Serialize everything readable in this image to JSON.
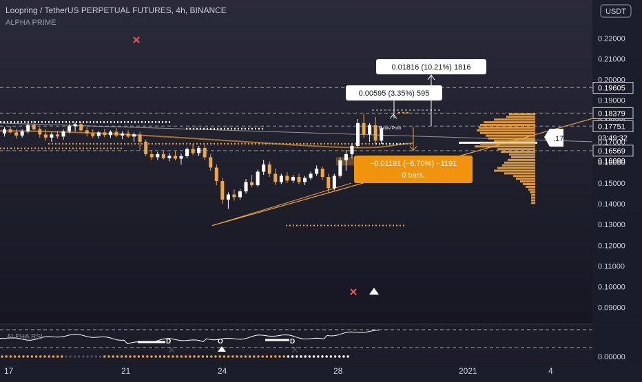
{
  "header": {
    "symbol_line": "Loopring / TetherUS PERPETUAL FUTURES, 4h, BINANCE",
    "indicator": "ALPHA PRIME",
    "currency_button": "USDT"
  },
  "colors": {
    "background_top": "#2a2b38",
    "background_bottom": "#12131f",
    "bull": "#ffffff",
    "bear": "#f0a640",
    "orange": "#f0a640",
    "grid_dash": "#c8c8c8",
    "axis_text": "#d1d4dc",
    "red_marker": "#f05454"
  },
  "chart_data": [
    {
      "type": "candlestick",
      "title": "Loopring / TetherUS PERPETUAL FUTURES, 4h, BINANCE",
      "x_ticks": [
        "17",
        "21",
        "24",
        "28",
        "2021",
        "4"
      ],
      "y_ticks": [
        0.22,
        0.21,
        0.2,
        0.19,
        0.18,
        0.17,
        0.16,
        0.15,
        0.14,
        0.13,
        0.12,
        0.11,
        0.1,
        0.09
      ],
      "y_tick_labels": [
        "0.22000",
        "0.21000",
        "0.20000",
        "0.19000",
        "0.18000",
        "0.17000",
        "0.16000",
        "0.15000",
        "0.14000",
        "0.13000",
        "0.12000",
        "0.11000",
        "0.10000",
        "0.09000"
      ],
      "ylim": [
        0.0855,
        0.2245
      ],
      "price_labels": [
        {
          "value": 0.19605,
          "text": "0.19605",
          "style": "outline"
        },
        {
          "value": 0.18379,
          "text": "0.18379",
          "style": "outline"
        },
        {
          "value": 0.17751,
          "text": "0.17751",
          "style": "outline"
        },
        {
          "value": 0.1719,
          "text": "03:49:32",
          "style": "plain"
        },
        {
          "value": 0.16569,
          "text": "0.16569",
          "style": "outline"
        },
        {
          "value": 0.1609,
          "text": "0.16090",
          "style": "plain"
        }
      ],
      "measure_boxes": [
        {
          "text": "0.01816 (10.21%) 1816",
          "style": "white"
        },
        {
          "text": "0.00595 (3.35%) 595",
          "style": "white"
        },
        {
          "line1": "−0.01191 (−6.70%) −1191",
          "line2": "0 bars,",
          "style": "orange"
        }
      ],
      "annotations": [
        "Future Pivot"
      ],
      "current_price_tag": ".17",
      "candles": [
        {
          "o": 0.174,
          "h": 0.177,
          "l": 0.1725,
          "c": 0.176
        },
        {
          "o": 0.176,
          "h": 0.1775,
          "l": 0.174,
          "c": 0.1745
        },
        {
          "o": 0.1745,
          "h": 0.1762,
          "l": 0.1715,
          "c": 0.173
        },
        {
          "o": 0.173,
          "h": 0.176,
          "l": 0.172,
          "c": 0.175
        },
        {
          "o": 0.175,
          "h": 0.179,
          "l": 0.174,
          "c": 0.178
        },
        {
          "o": 0.178,
          "h": 0.18,
          "l": 0.175,
          "c": 0.176
        },
        {
          "o": 0.176,
          "h": 0.177,
          "l": 0.172,
          "c": 0.1735
        },
        {
          "o": 0.1735,
          "h": 0.176,
          "l": 0.1705,
          "c": 0.172
        },
        {
          "o": 0.172,
          "h": 0.1745,
          "l": 0.17,
          "c": 0.1735
        },
        {
          "o": 0.1735,
          "h": 0.175,
          "l": 0.1715,
          "c": 0.1725
        },
        {
          "o": 0.1725,
          "h": 0.176,
          "l": 0.171,
          "c": 0.175
        },
        {
          "o": 0.175,
          "h": 0.1785,
          "l": 0.174,
          "c": 0.1775
        },
        {
          "o": 0.1775,
          "h": 0.1792,
          "l": 0.175,
          "c": 0.1785
        },
        {
          "o": 0.1785,
          "h": 0.1795,
          "l": 0.1745,
          "c": 0.1755
        },
        {
          "o": 0.1755,
          "h": 0.177,
          "l": 0.1725,
          "c": 0.174
        },
        {
          "o": 0.174,
          "h": 0.176,
          "l": 0.1718,
          "c": 0.1728
        },
        {
          "o": 0.1728,
          "h": 0.1752,
          "l": 0.1715,
          "c": 0.1745
        },
        {
          "o": 0.1745,
          "h": 0.1762,
          "l": 0.1722,
          "c": 0.1732
        },
        {
          "o": 0.1732,
          "h": 0.1755,
          "l": 0.1718,
          "c": 0.1748
        },
        {
          "o": 0.1748,
          "h": 0.1765,
          "l": 0.1722,
          "c": 0.173
        },
        {
          "o": 0.173,
          "h": 0.175,
          "l": 0.1712,
          "c": 0.174
        },
        {
          "o": 0.174,
          "h": 0.1755,
          "l": 0.1718,
          "c": 0.1725
        },
        {
          "o": 0.1725,
          "h": 0.1745,
          "l": 0.17,
          "c": 0.1735
        },
        {
          "o": 0.1735,
          "h": 0.1748,
          "l": 0.166,
          "c": 0.17
        },
        {
          "o": 0.17,
          "h": 0.171,
          "l": 0.163,
          "c": 0.164
        },
        {
          "o": 0.164,
          "h": 0.166,
          "l": 0.161,
          "c": 0.1625
        },
        {
          "o": 0.1625,
          "h": 0.165,
          "l": 0.1612,
          "c": 0.164
        },
        {
          "o": 0.164,
          "h": 0.1658,
          "l": 0.1615,
          "c": 0.162
        },
        {
          "o": 0.162,
          "h": 0.1645,
          "l": 0.1605,
          "c": 0.1632
        },
        {
          "o": 0.1632,
          "h": 0.1655,
          "l": 0.161,
          "c": 0.1618
        },
        {
          "o": 0.1618,
          "h": 0.1642,
          "l": 0.159,
          "c": 0.163
        },
        {
          "o": 0.163,
          "h": 0.1672,
          "l": 0.162,
          "c": 0.1665
        },
        {
          "o": 0.1665,
          "h": 0.169,
          "l": 0.1635,
          "c": 0.1645
        },
        {
          "o": 0.1645,
          "h": 0.168,
          "l": 0.163,
          "c": 0.167
        },
        {
          "o": 0.167,
          "h": 0.1685,
          "l": 0.161,
          "c": 0.1625
        },
        {
          "o": 0.1625,
          "h": 0.164,
          "l": 0.156,
          "c": 0.1575
        },
        {
          "o": 0.1575,
          "h": 0.159,
          "l": 0.149,
          "c": 0.151
        },
        {
          "o": 0.151,
          "h": 0.1525,
          "l": 0.14,
          "c": 0.142
        },
        {
          "o": 0.142,
          "h": 0.1455,
          "l": 0.1375,
          "c": 0.1445
        },
        {
          "o": 0.1445,
          "h": 0.147,
          "l": 0.1415,
          "c": 0.1432
        },
        {
          "o": 0.1432,
          "h": 0.147,
          "l": 0.142,
          "c": 0.146
        },
        {
          "o": 0.146,
          "h": 0.152,
          "l": 0.145,
          "c": 0.1505
        },
        {
          "o": 0.1505,
          "h": 0.154,
          "l": 0.148,
          "c": 0.149
        },
        {
          "o": 0.149,
          "h": 0.1565,
          "l": 0.1482,
          "c": 0.1555
        },
        {
          "o": 0.1555,
          "h": 0.1612,
          "l": 0.154,
          "c": 0.159
        },
        {
          "o": 0.159,
          "h": 0.1605,
          "l": 0.153,
          "c": 0.1545
        },
        {
          "o": 0.1545,
          "h": 0.157,
          "l": 0.149,
          "c": 0.1505
        },
        {
          "o": 0.1505,
          "h": 0.1545,
          "l": 0.1495,
          "c": 0.1535
        },
        {
          "o": 0.1535,
          "h": 0.1552,
          "l": 0.15,
          "c": 0.1512
        },
        {
          "o": 0.1512,
          "h": 0.154,
          "l": 0.15,
          "c": 0.153
        },
        {
          "o": 0.153,
          "h": 0.1545,
          "l": 0.1495,
          "c": 0.1505
        },
        {
          "o": 0.1505,
          "h": 0.1535,
          "l": 0.149,
          "c": 0.1525
        },
        {
          "o": 0.1525,
          "h": 0.1555,
          "l": 0.1515,
          "c": 0.1545
        },
        {
          "o": 0.1545,
          "h": 0.1585,
          "l": 0.1535,
          "c": 0.157
        },
        {
          "o": 0.157,
          "h": 0.158,
          "l": 0.1515,
          "c": 0.153
        },
        {
          "o": 0.153,
          "h": 0.1545,
          "l": 0.1455,
          "c": 0.1475
        },
        {
          "o": 0.1475,
          "h": 0.1545,
          "l": 0.1465,
          "c": 0.1535
        },
        {
          "o": 0.1535,
          "h": 0.1625,
          "l": 0.1525,
          "c": 0.161
        },
        {
          "o": 0.161,
          "h": 0.166,
          "l": 0.156,
          "c": 0.164
        },
        {
          "o": 0.164,
          "h": 0.169,
          "l": 0.162,
          "c": 0.168
        },
        {
          "o": 0.168,
          "h": 0.181,
          "l": 0.167,
          "c": 0.179
        },
        {
          "o": 0.179,
          "h": 0.1835,
          "l": 0.172,
          "c": 0.1735
        },
        {
          "o": 0.1735,
          "h": 0.179,
          "l": 0.17,
          "c": 0.178
        },
        {
          "o": 0.178,
          "h": 0.182,
          "l": 0.169,
          "c": 0.1705
        },
        {
          "o": 0.1705,
          "h": 0.1775,
          "l": 0.169,
          "c": 0.1765
        }
      ],
      "volume_profile": [
        {
          "price": 0.1833,
          "len": 38
        },
        {
          "price": 0.182,
          "len": 42
        },
        {
          "price": 0.1807,
          "len": 60
        },
        {
          "price": 0.1794,
          "len": 75
        },
        {
          "price": 0.1781,
          "len": 80
        },
        {
          "price": 0.1768,
          "len": 82
        },
        {
          "price": 0.1755,
          "len": 85
        },
        {
          "price": 0.1742,
          "len": 80
        },
        {
          "price": 0.1729,
          "len": 72
        },
        {
          "price": 0.1716,
          "len": 68
        },
        {
          "price": 0.1703,
          "len": 60
        },
        {
          "price": 0.169,
          "len": 80
        },
        {
          "price": 0.1677,
          "len": 88
        },
        {
          "price": 0.1664,
          "len": 55
        },
        {
          "price": 0.1651,
          "len": 50
        },
        {
          "price": 0.1638,
          "len": 38
        },
        {
          "price": 0.1625,
          "len": 35
        },
        {
          "price": 0.1612,
          "len": 40
        },
        {
          "price": 0.1599,
          "len": 45
        },
        {
          "price": 0.1586,
          "len": 48
        },
        {
          "price": 0.1573,
          "len": 55
        },
        {
          "price": 0.156,
          "len": 60
        },
        {
          "price": 0.1547,
          "len": 45
        },
        {
          "price": 0.1534,
          "len": 32
        },
        {
          "price": 0.1521,
          "len": 28
        },
        {
          "price": 0.1508,
          "len": 22
        },
        {
          "price": 0.1495,
          "len": 18
        },
        {
          "price": 0.1482,
          "len": 14
        },
        {
          "price": 0.1469,
          "len": 10
        },
        {
          "price": 0.1456,
          "len": 8
        },
        {
          "price": 0.1443,
          "len": 6
        },
        {
          "price": 0.143,
          "len": 6
        },
        {
          "price": 0.1417,
          "len": 6
        },
        {
          "price": 0.1404,
          "len": 6
        }
      ]
    },
    {
      "type": "line",
      "title": "ALPHA RSI",
      "y_tick_labels": [
        "0.00000"
      ],
      "markers": [
        "D",
        "O",
        "D"
      ]
    }
  ]
}
